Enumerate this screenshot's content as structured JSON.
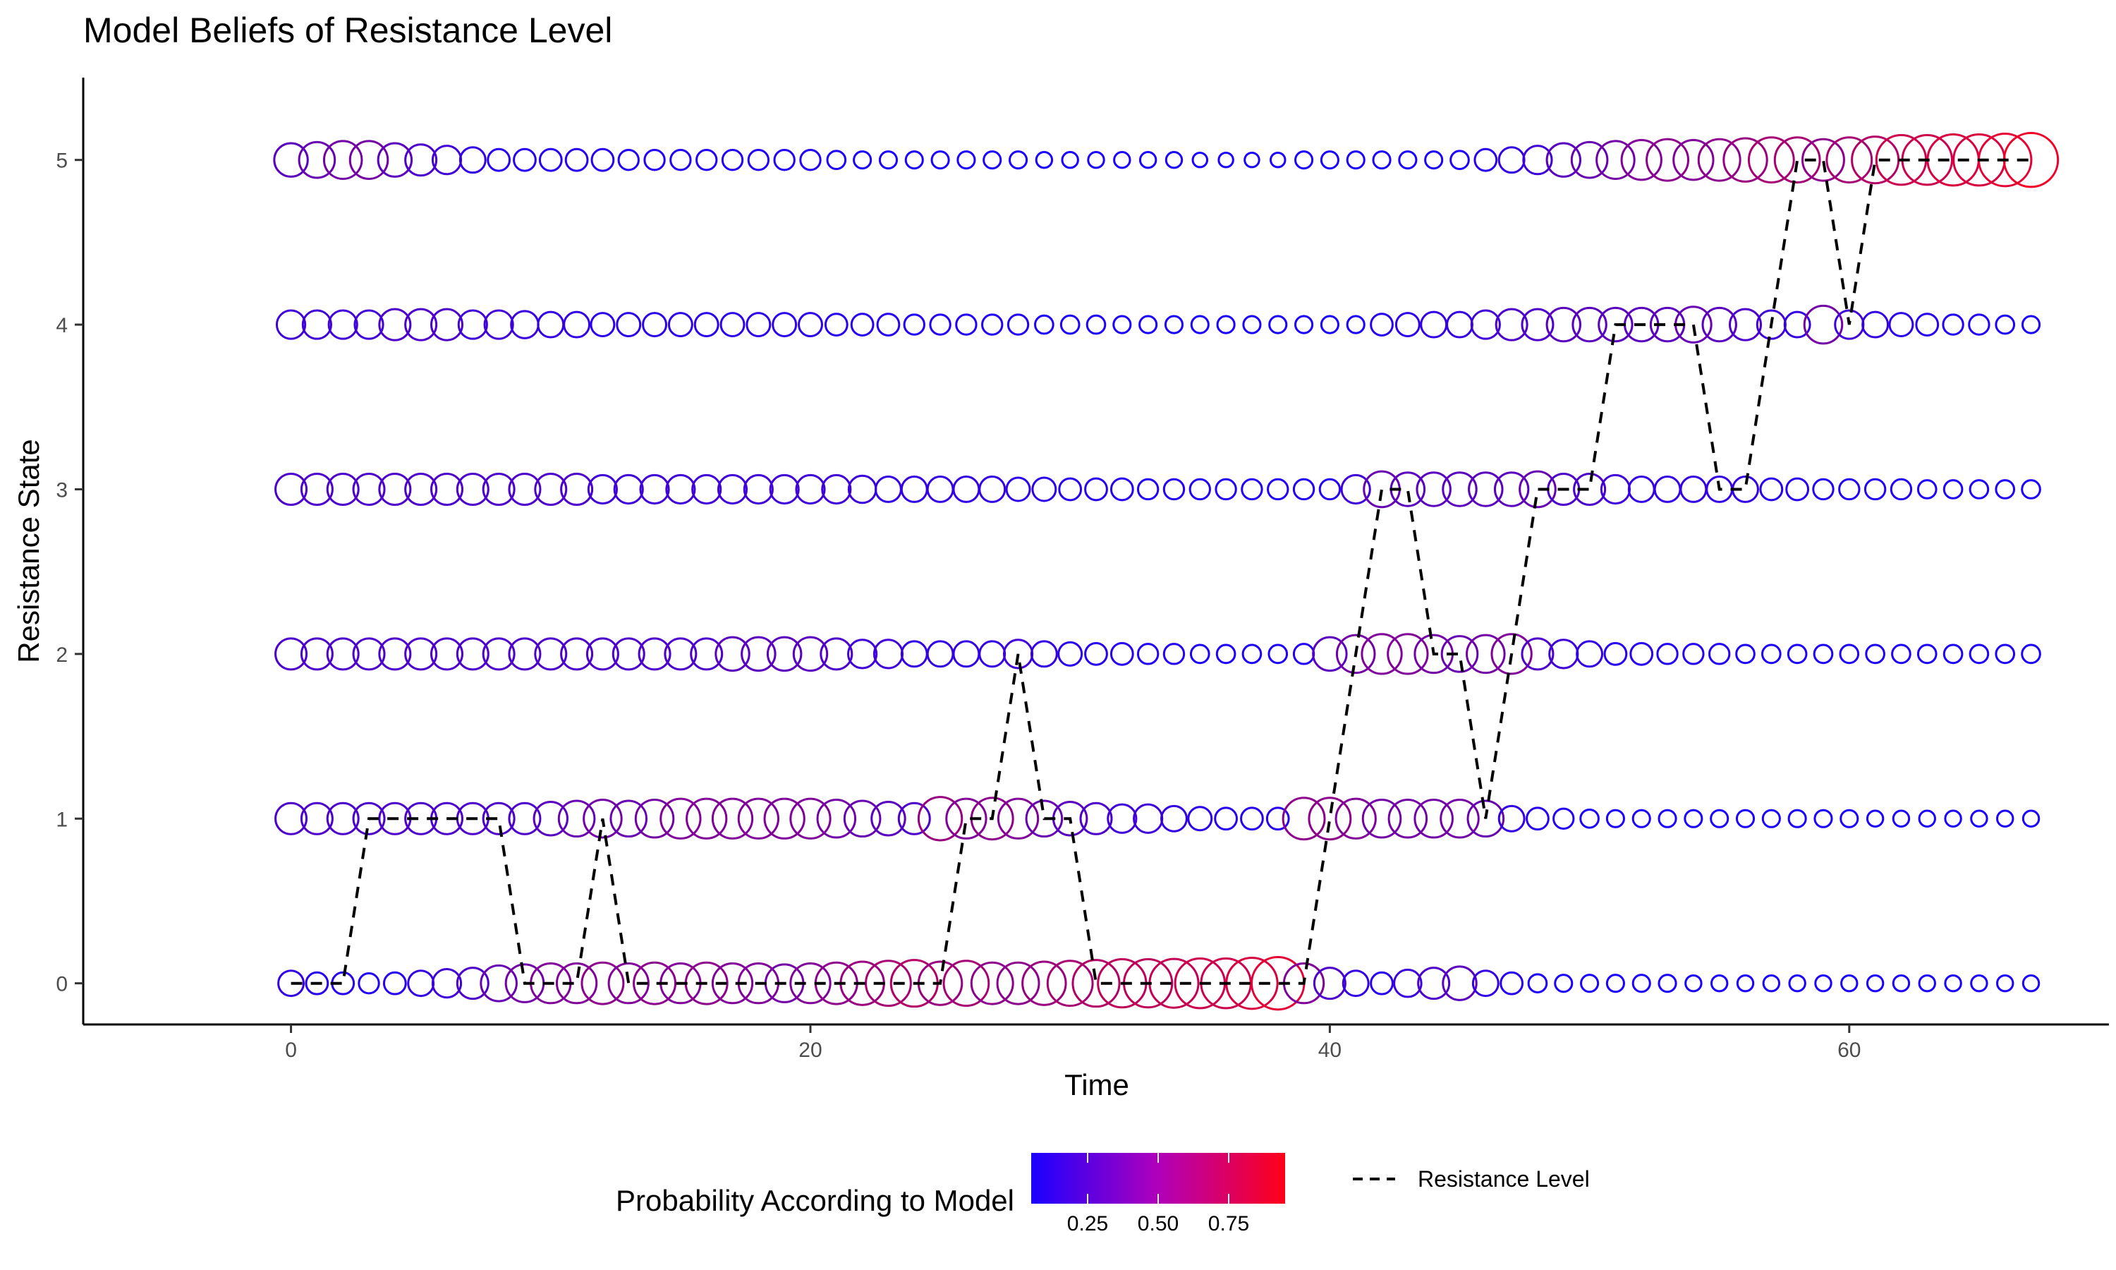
{
  "chart_data": {
    "type": "scatter",
    "title": "Model Beliefs of Resistance Level",
    "xlabel": "Time",
    "ylabel": "Resistance State",
    "xlim": [
      -8,
      70
    ],
    "ylim": [
      -0.25,
      5.5
    ],
    "x_ticks": [
      0,
      20,
      40,
      60
    ],
    "y_ticks": [
      0,
      1,
      2,
      3,
      4,
      5
    ],
    "grid": false,
    "legend": {
      "position": "bottom",
      "color_title": "Probability According to Model",
      "color_ticks": [
        0.25,
        0.5,
        0.75
      ],
      "color_tick_labels": [
        "0.25",
        "0.50",
        "0.75"
      ],
      "color_range": [
        0.05,
        0.95
      ],
      "color_low": "#1a00ff",
      "color_high": "#ff0019",
      "line_label": "Resistance Level"
    },
    "resistance_level": {
      "name": "Resistance Level",
      "x": [
        0,
        1,
        2,
        3,
        4,
        5,
        6,
        7,
        8,
        9,
        10,
        11,
        12,
        13,
        14,
        15,
        16,
        17,
        18,
        19,
        20,
        21,
        22,
        23,
        24,
        25,
        26,
        27,
        28,
        29,
        30,
        31,
        32,
        33,
        34,
        35,
        36,
        37,
        38,
        39,
        40,
        41,
        42,
        43,
        44,
        45,
        46,
        47,
        48,
        49,
        50,
        51,
        52,
        53,
        54,
        55,
        56,
        57,
        58,
        59,
        60,
        61,
        62,
        63,
        64,
        65,
        66,
        67
      ],
      "y": [
        0,
        0,
        0,
        1,
        1,
        1,
        1,
        1,
        1,
        0,
        0,
        0,
        1,
        0,
        0,
        0,
        0,
        0,
        0,
        0,
        0,
        0,
        0,
        0,
        0,
        0,
        1,
        1,
        2,
        1,
        1,
        0,
        0,
        0,
        0,
        0,
        0,
        0,
        0,
        0,
        1,
        2,
        3,
        3,
        2,
        2,
        1,
        2,
        3,
        3,
        3,
        4,
        4,
        4,
        4,
        3,
        3,
        4,
        5,
        5,
        4,
        5,
        5,
        5,
        5,
        5,
        5,
        5
      ]
    },
    "beliefs": [
      {
        "state": 0,
        "probability": [
          0.15,
          0.1,
          0.1,
          0.08,
          0.1,
          0.15,
          0.2,
          0.25,
          0.35,
          0.4,
          0.45,
          0.45,
          0.5,
          0.45,
          0.5,
          0.45,
          0.5,
          0.45,
          0.45,
          0.4,
          0.45,
          0.5,
          0.55,
          0.6,
          0.65,
          0.55,
          0.6,
          0.5,
          0.5,
          0.55,
          0.6,
          0.65,
          0.7,
          0.7,
          0.72,
          0.75,
          0.75,
          0.8,
          0.85,
          0.45,
          0.25,
          0.15,
          0.1,
          0.18,
          0.25,
          0.3,
          0.15,
          0.1,
          0.06,
          0.05,
          0.05,
          0.05,
          0.05,
          0.05,
          0.04,
          0.04,
          0.04,
          0.04,
          0.04,
          0.04,
          0.04,
          0.04,
          0.04,
          0.04,
          0.04,
          0.04,
          0.04,
          0.04
        ]
      },
      {
        "state": 1,
        "probability": [
          0.25,
          0.25,
          0.25,
          0.25,
          0.25,
          0.25,
          0.25,
          0.25,
          0.25,
          0.25,
          0.3,
          0.35,
          0.4,
          0.35,
          0.4,
          0.45,
          0.45,
          0.45,
          0.45,
          0.45,
          0.45,
          0.4,
          0.35,
          0.3,
          0.25,
          0.55,
          0.45,
          0.5,
          0.45,
          0.35,
          0.3,
          0.25,
          0.2,
          0.2,
          0.15,
          0.12,
          0.1,
          0.1,
          0.1,
          0.5,
          0.5,
          0.45,
          0.4,
          0.4,
          0.4,
          0.4,
          0.35,
          0.15,
          0.1,
          0.08,
          0.06,
          0.05,
          0.05,
          0.05,
          0.05,
          0.05,
          0.05,
          0.05,
          0.05,
          0.05,
          0.05,
          0.04,
          0.04,
          0.04,
          0.04,
          0.04,
          0.04,
          0.04
        ]
      },
      {
        "state": 2,
        "probability": [
          0.25,
          0.25,
          0.25,
          0.25,
          0.25,
          0.25,
          0.25,
          0.25,
          0.25,
          0.25,
          0.25,
          0.25,
          0.25,
          0.25,
          0.25,
          0.25,
          0.25,
          0.3,
          0.3,
          0.3,
          0.3,
          0.25,
          0.2,
          0.2,
          0.15,
          0.15,
          0.15,
          0.15,
          0.2,
          0.15,
          0.12,
          0.1,
          0.1,
          0.08,
          0.08,
          0.06,
          0.06,
          0.06,
          0.06,
          0.08,
          0.3,
          0.4,
          0.45,
          0.45,
          0.4,
          0.35,
          0.4,
          0.45,
          0.25,
          0.2,
          0.15,
          0.1,
          0.1,
          0.08,
          0.08,
          0.08,
          0.06,
          0.06,
          0.06,
          0.06,
          0.06,
          0.06,
          0.06,
          0.06,
          0.06,
          0.06,
          0.06,
          0.06
        ]
      },
      {
        "state": 3,
        "probability": [
          0.25,
          0.25,
          0.25,
          0.25,
          0.25,
          0.25,
          0.25,
          0.25,
          0.25,
          0.25,
          0.25,
          0.25,
          0.2,
          0.2,
          0.2,
          0.2,
          0.2,
          0.2,
          0.2,
          0.2,
          0.2,
          0.2,
          0.18,
          0.15,
          0.15,
          0.15,
          0.15,
          0.15,
          0.12,
          0.12,
          0.1,
          0.1,
          0.1,
          0.08,
          0.08,
          0.08,
          0.08,
          0.08,
          0.08,
          0.08,
          0.08,
          0.2,
          0.35,
          0.3,
          0.3,
          0.3,
          0.3,
          0.3,
          0.35,
          0.25,
          0.25,
          0.2,
          0.15,
          0.15,
          0.15,
          0.15,
          0.15,
          0.1,
          0.1,
          0.08,
          0.08,
          0.08,
          0.08,
          0.06,
          0.06,
          0.06,
          0.06,
          0.06
        ]
      },
      {
        "state": 4,
        "probability": [
          0.2,
          0.2,
          0.2,
          0.2,
          0.25,
          0.25,
          0.25,
          0.2,
          0.2,
          0.18,
          0.15,
          0.15,
          0.12,
          0.12,
          0.12,
          0.12,
          0.12,
          0.12,
          0.12,
          0.12,
          0.12,
          0.1,
          0.1,
          0.1,
          0.08,
          0.08,
          0.08,
          0.08,
          0.08,
          0.06,
          0.06,
          0.06,
          0.05,
          0.05,
          0.05,
          0.05,
          0.05,
          0.05,
          0.05,
          0.05,
          0.05,
          0.05,
          0.1,
          0.12,
          0.15,
          0.15,
          0.2,
          0.25,
          0.25,
          0.3,
          0.3,
          0.3,
          0.3,
          0.3,
          0.35,
          0.3,
          0.25,
          0.2,
          0.15,
          0.4,
          0.2,
          0.15,
          0.12,
          0.1,
          0.08,
          0.08,
          0.06,
          0.05
        ]
      },
      {
        "state": 5,
        "probability": [
          0.3,
          0.35,
          0.4,
          0.4,
          0.3,
          0.25,
          0.2,
          0.15,
          0.1,
          0.1,
          0.1,
          0.1,
          0.1,
          0.08,
          0.08,
          0.08,
          0.08,
          0.08,
          0.08,
          0.08,
          0.08,
          0.06,
          0.05,
          0.05,
          0.05,
          0.05,
          0.05,
          0.05,
          0.05,
          0.04,
          0.04,
          0.04,
          0.04,
          0.04,
          0.04,
          0.03,
          0.03,
          0.03,
          0.03,
          0.05,
          0.05,
          0.05,
          0.05,
          0.05,
          0.05,
          0.06,
          0.1,
          0.15,
          0.2,
          0.3,
          0.35,
          0.4,
          0.45,
          0.5,
          0.45,
          0.5,
          0.55,
          0.6,
          0.6,
          0.5,
          0.6,
          0.65,
          0.75,
          0.75,
          0.8,
          0.8,
          0.85,
          0.9
        ]
      }
    ]
  }
}
